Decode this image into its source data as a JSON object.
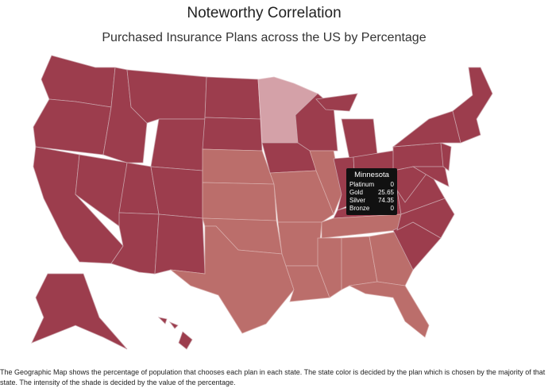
{
  "title": "Noteworthy Correlation",
  "subtitle": "Purchased Insurance Plans across the US by Percentage",
  "tooltip": {
    "state": "Minnesota",
    "rows": [
      {
        "label": "Platinum",
        "value": 0
      },
      {
        "label": "Gold",
        "value": 25.65
      },
      {
        "label": "Silver",
        "value": 74.35
      },
      {
        "label": "Bronze",
        "value": 0
      }
    ]
  },
  "caption": "The Geographic Map shows the percentage of population that chooses each plan in each state. The state color is decided by the plan which is chosen by the majority of that state. The intensity of the shade is decided by the value of the percentage."
}
